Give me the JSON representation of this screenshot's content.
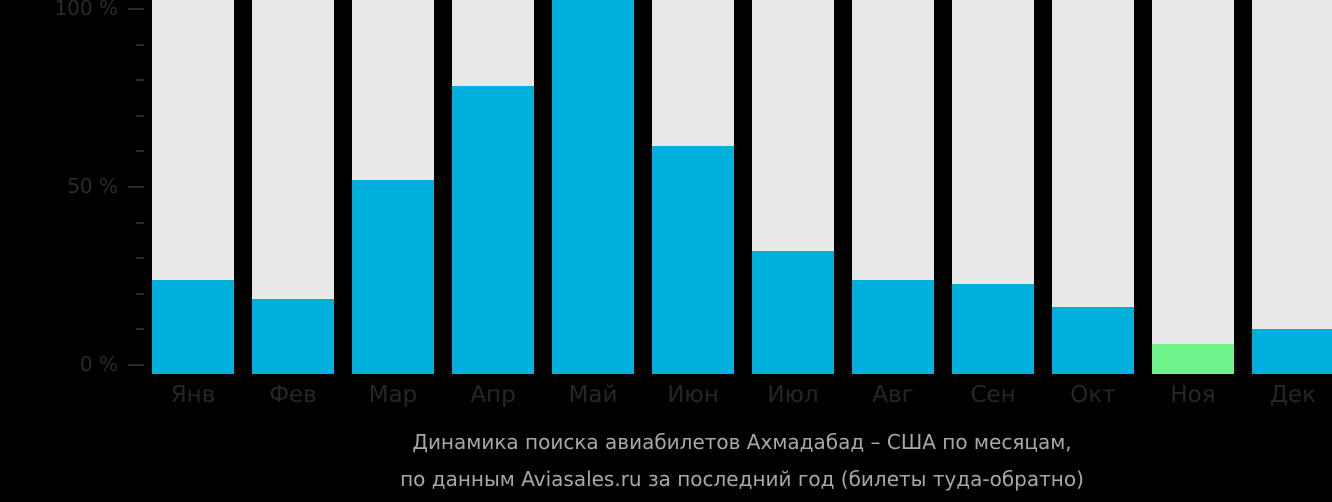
{
  "chart_data": {
    "type": "bar",
    "stacked_background": true,
    "title": "Динамика поиска авиабилетов Ахмадабад – США по месяцам,",
    "subtitle": "по данным Aviasales.ru за последний год (билеты туда-обратно)",
    "xlabel": "",
    "ylabel": "",
    "ylim": [
      0,
      100
    ],
    "y_ticks": [
      "100 %",
      "50 %",
      "0 %"
    ],
    "grid": false,
    "legend": null,
    "categories": [
      "Янв",
      "Фев",
      "Мар",
      "Апр",
      "Май",
      "Июн",
      "Июл",
      "Авг",
      "Сен",
      "Окт",
      "Ноя",
      "Дек"
    ],
    "values": [
      25,
      20,
      52,
      77,
      100,
      61,
      33,
      25,
      24,
      18,
      8,
      12
    ],
    "highlight_index": 10,
    "colors": {
      "bar": "#00b0dc",
      "highlight": "#6ef28a",
      "track": "#e8e8e8",
      "background": "#000000",
      "axis_text": "#2a2a2a",
      "caption_text": "#a8a8a8"
    }
  }
}
